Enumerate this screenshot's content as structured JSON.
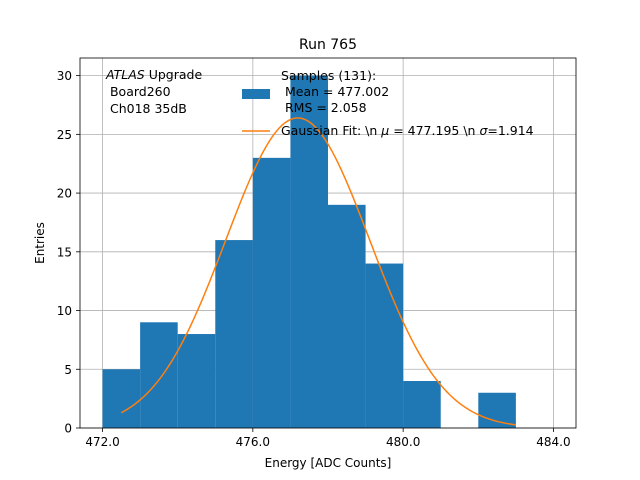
{
  "chart_data": {
    "type": "bar",
    "title": "Run 765",
    "xlabel": "Energy [ADC Counts]",
    "ylabel": "Entries",
    "xlim": [
      471.4,
      484.6
    ],
    "ylim": [
      0,
      31.5
    ],
    "x_ticks": [
      472.0,
      476.0,
      480.0,
      484.0
    ],
    "x_tick_labels": [
      "472.0",
      "476.0",
      "480.0",
      "484.0"
    ],
    "y_ticks": [
      0,
      5,
      10,
      15,
      20,
      25,
      30
    ],
    "y_tick_labels": [
      "0",
      "5",
      "10",
      "15",
      "20",
      "25",
      "30"
    ],
    "grid": true,
    "histogram": {
      "name": "Samples (131):\n Mean = 477.002\n RMS = 2.058",
      "color": "#1f77b4",
      "bin_edges": [
        472,
        473,
        474,
        475,
        476,
        477,
        478,
        479,
        480,
        481,
        482,
        483
      ],
      "counts": [
        5,
        9,
        8,
        16,
        23,
        30,
        19,
        14,
        4,
        0,
        3
      ]
    },
    "fit": {
      "name": "Gaussian Fit: \\n $\\mu$ = 477.195 \\n $\\sigma$=1.914",
      "legend_prefix": "Gaussian Fit: \\n ",
      "legend_mu": "μ",
      "legend_mid": " = 477.195 \\n ",
      "legend_sigma": "σ",
      "legend_suffix": "=1.914",
      "color": "#ff7f0e",
      "type": "gaussian",
      "mu": 477.195,
      "sigma": 1.914,
      "amplitude": 26.4,
      "x_range": [
        472.5,
        483.0
      ]
    },
    "annotation": {
      "italic_part": "ATLAS",
      "rest": " Upgrade",
      "line2": " Board260",
      "line3": " Ch018 35dB"
    },
    "legend": {
      "placement": "top-right",
      "hist_line1": "Samples (131):",
      "hist_line2": " Mean = 477.002",
      "hist_line3": " RMS = 2.058"
    }
  }
}
